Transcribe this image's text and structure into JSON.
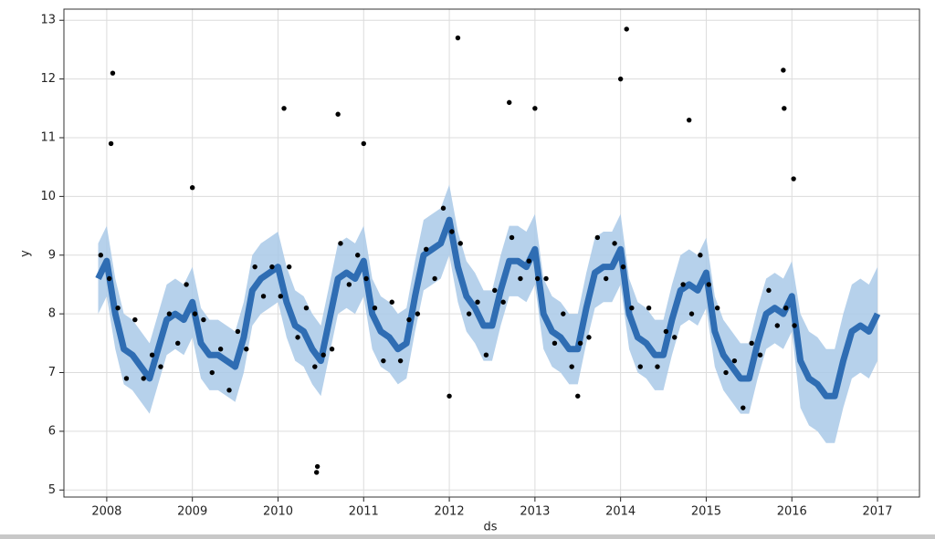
{
  "chart_data": {
    "type": "line",
    "xlabel": "ds",
    "ylabel": "y",
    "xlim": [
      2007.5,
      2017.49
    ],
    "ylim": [
      4.88,
      13.19
    ],
    "xticks": [
      2008,
      2009,
      2010,
      2011,
      2012,
      2013,
      2014,
      2015,
      2016,
      2017
    ],
    "yticks": [
      5,
      6,
      7,
      8,
      9,
      10,
      11,
      12,
      13
    ],
    "grid": true,
    "x": [
      2007.9,
      2008.0,
      2008.1,
      2008.2,
      2008.3,
      2008.4,
      2008.5,
      2008.6,
      2008.7,
      2008.8,
      2008.9,
      2009.0,
      2009.1,
      2009.2,
      2009.3,
      2009.4,
      2009.5,
      2009.6,
      2009.7,
      2009.8,
      2009.9,
      2010.0,
      2010.1,
      2010.2,
      2010.3,
      2010.4,
      2010.5,
      2010.6,
      2010.7,
      2010.8,
      2010.9,
      2011.0,
      2011.1,
      2011.2,
      2011.3,
      2011.4,
      2011.5,
      2011.6,
      2011.7,
      2011.8,
      2011.9,
      2012.0,
      2012.1,
      2012.2,
      2012.3,
      2012.4,
      2012.5,
      2012.6,
      2012.7,
      2012.8,
      2012.9,
      2013.0,
      2013.1,
      2013.2,
      2013.3,
      2013.4,
      2013.5,
      2013.6,
      2013.7,
      2013.8,
      2013.9,
      2014.0,
      2014.1,
      2014.2,
      2014.3,
      2014.4,
      2014.5,
      2014.6,
      2014.7,
      2014.8,
      2014.9,
      2015.0,
      2015.1,
      2015.2,
      2015.3,
      2015.4,
      2015.5,
      2015.6,
      2015.7,
      2015.8,
      2015.9,
      2016.0,
      2016.1,
      2016.2,
      2016.3,
      2016.4,
      2016.5,
      2016.6,
      2016.7,
      2016.8,
      2016.9,
      2017.0
    ],
    "forecast": {
      "color": "#2f6db3",
      "values": [
        8.6,
        8.9,
        8.0,
        7.4,
        7.3,
        7.1,
        6.9,
        7.4,
        7.9,
        8.0,
        7.9,
        8.2,
        7.5,
        7.3,
        7.3,
        7.2,
        7.1,
        7.6,
        8.4,
        8.6,
        8.7,
        8.8,
        8.2,
        7.8,
        7.7,
        7.4,
        7.2,
        7.9,
        8.6,
        8.7,
        8.6,
        8.9,
        8.0,
        7.7,
        7.6,
        7.4,
        7.5,
        8.3,
        9.0,
        9.1,
        9.2,
        9.6,
        8.8,
        8.3,
        8.1,
        7.8,
        7.8,
        8.4,
        8.9,
        8.9,
        8.8,
        9.1,
        8.0,
        7.7,
        7.6,
        7.4,
        7.4,
        8.1,
        8.7,
        8.8,
        8.8,
        9.1,
        8.0,
        7.6,
        7.5,
        7.3,
        7.3,
        7.9,
        8.4,
        8.5,
        8.4,
        8.7,
        7.7,
        7.3,
        7.1,
        6.9,
        6.9,
        7.5,
        8.0,
        8.1,
        8.0,
        8.3,
        7.2,
        6.9,
        6.8,
        6.6,
        6.6,
        7.2,
        7.7,
        7.8,
        7.7,
        8.0
      ]
    },
    "interval": {
      "color": "#a9c9e7",
      "lower": [
        8.0,
        8.3,
        7.4,
        6.8,
        6.7,
        6.5,
        6.3,
        6.8,
        7.3,
        7.4,
        7.3,
        7.6,
        6.9,
        6.7,
        6.7,
        6.6,
        6.5,
        7.0,
        7.8,
        8.0,
        8.1,
        8.2,
        7.6,
        7.2,
        7.1,
        6.8,
        6.6,
        7.3,
        8.0,
        8.1,
        8.0,
        8.3,
        7.4,
        7.1,
        7.0,
        6.8,
        6.9,
        7.7,
        8.4,
        8.5,
        8.6,
        9.0,
        8.2,
        7.7,
        7.5,
        7.2,
        7.2,
        7.8,
        8.3,
        8.3,
        8.2,
        8.5,
        7.4,
        7.1,
        7.0,
        6.8,
        6.8,
        7.5,
        8.1,
        8.2,
        8.2,
        8.5,
        7.4,
        7.0,
        6.9,
        6.7,
        6.7,
        7.3,
        7.8,
        7.9,
        7.8,
        8.1,
        7.1,
        6.7,
        6.5,
        6.3,
        6.3,
        6.9,
        7.4,
        7.5,
        7.4,
        7.7,
        6.4,
        6.1,
        6.0,
        5.8,
        5.8,
        6.4,
        6.9,
        7.0,
        6.9,
        7.2
      ],
      "upper": [
        9.2,
        9.5,
        8.6,
        8.0,
        7.9,
        7.7,
        7.5,
        8.0,
        8.5,
        8.6,
        8.5,
        8.8,
        8.1,
        7.9,
        7.9,
        7.8,
        7.7,
        8.2,
        9.0,
        9.2,
        9.3,
        9.4,
        8.8,
        8.4,
        8.3,
        8.0,
        7.8,
        8.5,
        9.2,
        9.3,
        9.2,
        9.5,
        8.6,
        8.3,
        8.2,
        8.0,
        8.1,
        8.9,
        9.6,
        9.7,
        9.8,
        10.2,
        9.4,
        8.9,
        8.7,
        8.4,
        8.4,
        9.0,
        9.5,
        9.5,
        9.4,
        9.7,
        8.6,
        8.3,
        8.2,
        8.0,
        8.0,
        8.7,
        9.3,
        9.4,
        9.4,
        9.7,
        8.6,
        8.2,
        8.1,
        7.9,
        7.9,
        8.5,
        9.0,
        9.1,
        9.0,
        9.3,
        8.3,
        7.9,
        7.7,
        7.5,
        7.5,
        8.1,
        8.6,
        8.7,
        8.6,
        8.9,
        8.0,
        7.7,
        7.6,
        7.4,
        7.4,
        8.0,
        8.5,
        8.6,
        8.5,
        8.8
      ]
    },
    "observed": {
      "color": "#000000",
      "x": [
        2007.93,
        2008.03,
        2008.13,
        2008.23,
        2008.33,
        2008.43,
        2008.53,
        2008.63,
        2008.73,
        2008.83,
        2008.93,
        2009.03,
        2009.13,
        2009.23,
        2009.33,
        2009.43,
        2009.53,
        2009.63,
        2009.73,
        2009.83,
        2009.93,
        2010.03,
        2010.13,
        2010.23,
        2010.33,
        2010.43,
        2010.53,
        2010.63,
        2010.73,
        2010.83,
        2010.93,
        2011.03,
        2011.13,
        2011.23,
        2011.33,
        2011.43,
        2011.53,
        2011.63,
        2011.73,
        2011.83,
        2011.93,
        2012.03,
        2012.13,
        2012.23,
        2012.33,
        2012.43,
        2012.53,
        2012.63,
        2012.73,
        2012.83,
        2012.93,
        2013.03,
        2013.13,
        2013.23,
        2013.33,
        2013.43,
        2013.53,
        2013.63,
        2013.73,
        2013.83,
        2013.93,
        2014.03,
        2014.13,
        2014.23,
        2014.33,
        2014.43,
        2014.53,
        2014.63,
        2014.73,
        2014.83,
        2014.93,
        2015.03,
        2015.13,
        2015.23,
        2015.33,
        2015.43,
        2015.53,
        2015.63,
        2015.73,
        2015.83,
        2015.93,
        2016.03,
        2008.07,
        2008.05,
        2010.07,
        2010.7,
        2011.0,
        2012.1,
        2012.0,
        2010.45,
        2010.46,
        2012.7,
        2013.0,
        2014.07,
        2014.0,
        2014.8,
        2015.9,
        2015.91,
        2016.02,
        2013.5,
        2009.0
      ],
      "values": [
        9.0,
        8.6,
        8.1,
        6.9,
        7.9,
        6.9,
        7.3,
        7.1,
        8.0,
        7.5,
        8.5,
        8.0,
        7.9,
        7.0,
        7.4,
        6.7,
        7.7,
        7.4,
        8.8,
        8.3,
        8.8,
        8.3,
        8.8,
        7.6,
        8.1,
        7.1,
        7.3,
        7.4,
        9.2,
        8.5,
        9.0,
        8.6,
        8.1,
        7.2,
        8.2,
        7.2,
        7.9,
        8.0,
        9.1,
        8.6,
        9.8,
        9.4,
        9.2,
        8.0,
        8.2,
        7.3,
        8.4,
        8.2,
        9.3,
        8.6,
        8.9,
        8.6,
        8.6,
        7.5,
        8.0,
        7.1,
        7.5,
        7.6,
        9.3,
        8.6,
        9.2,
        8.8,
        8.1,
        7.1,
        8.1,
        7.1,
        7.7,
        7.6,
        8.5,
        8.0,
        9.0,
        8.5,
        8.1,
        7.0,
        7.2,
        6.4,
        7.5,
        7.3,
        8.4,
        7.8,
        8.1,
        7.8,
        12.1,
        10.9,
        11.5,
        11.4,
        10.9,
        12.7,
        6.6,
        5.3,
        5.4,
        11.6,
        11.5,
        12.85,
        12.0,
        11.3,
        12.15,
        11.5,
        10.3,
        6.6,
        10.15
      ]
    }
  }
}
